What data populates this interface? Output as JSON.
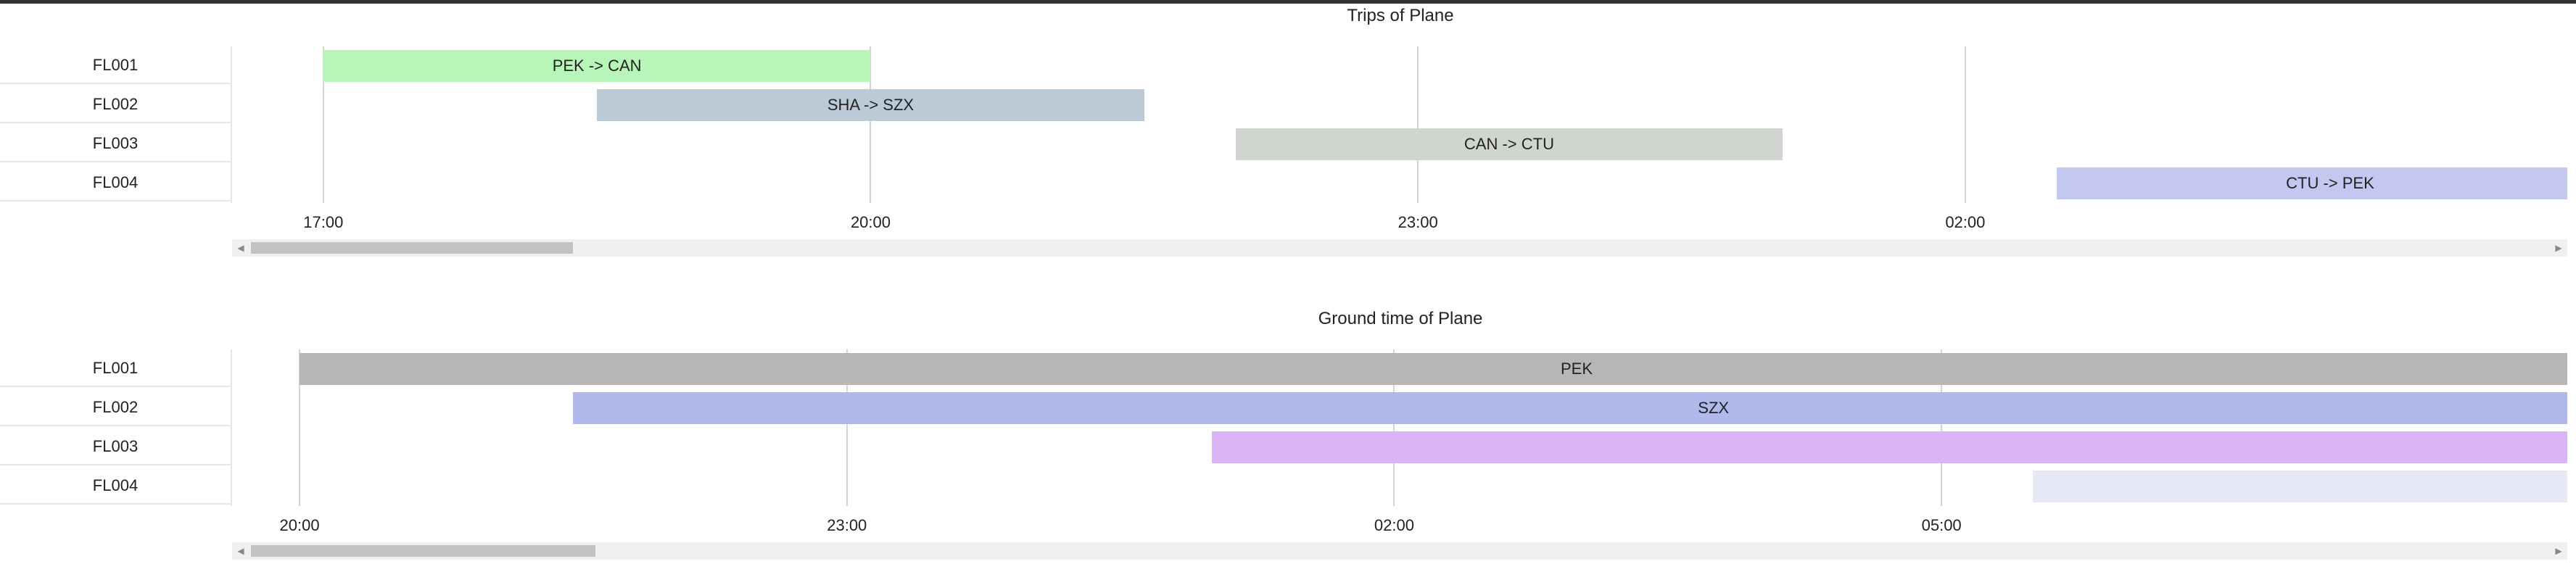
{
  "chart_data": [
    {
      "type": "gantt",
      "title": "Trips of Plane",
      "rows": [
        "FL001",
        "FL002",
        "FL003",
        "FL004"
      ],
      "x_ticks": [
        "17:00",
        "20:00",
        "23:00",
        "02:00"
      ],
      "x_range_hours": [
        16.5,
        29.3
      ],
      "tasks": [
        {
          "row": "FL001",
          "label": "PEK -> CAN",
          "start": 17.0,
          "end": 20.0,
          "color": "#b8f5b8"
        },
        {
          "row": "FL002",
          "label": "SHA -> SZX",
          "start": 18.5,
          "end": 21.5,
          "color": "#bccad7"
        },
        {
          "row": "FL003",
          "label": "CAN -> CTU",
          "start": 22.0,
          "end": 25.0,
          "color": "#d1d5cf"
        },
        {
          "row": "FL004",
          "label": "CTU -> PEK",
          "start": 26.5,
          "end": 29.5,
          "color": "#c2c8f0"
        }
      ],
      "scroll_thumb": [
        0.0,
        0.14
      ]
    },
    {
      "type": "gantt",
      "title": "Ground time of Plane",
      "rows": [
        "FL001",
        "FL002",
        "FL003",
        "FL004"
      ],
      "x_ticks": [
        "20:00",
        "23:00",
        "02:00",
        "05:00"
      ],
      "x_range_hours": [
        19.63,
        32.43
      ],
      "tasks": [
        {
          "row": "FL001",
          "label": "PEK",
          "start": 20.0,
          "end": 34.0,
          "color": "#b6b6b6"
        },
        {
          "row": "FL002",
          "label": "SZX",
          "start": 21.5,
          "end": 34.0,
          "color": "#b0b8ec"
        },
        {
          "row": "FL003",
          "label": "",
          "start": 25.0,
          "end": 34.0,
          "color": "#dab4f7"
        },
        {
          "row": "FL004",
          "label": "",
          "start": 29.5,
          "end": 34.0,
          "color": "#e5e9f5"
        }
      ],
      "scroll_thumb": [
        0.0,
        0.15
      ]
    }
  ]
}
